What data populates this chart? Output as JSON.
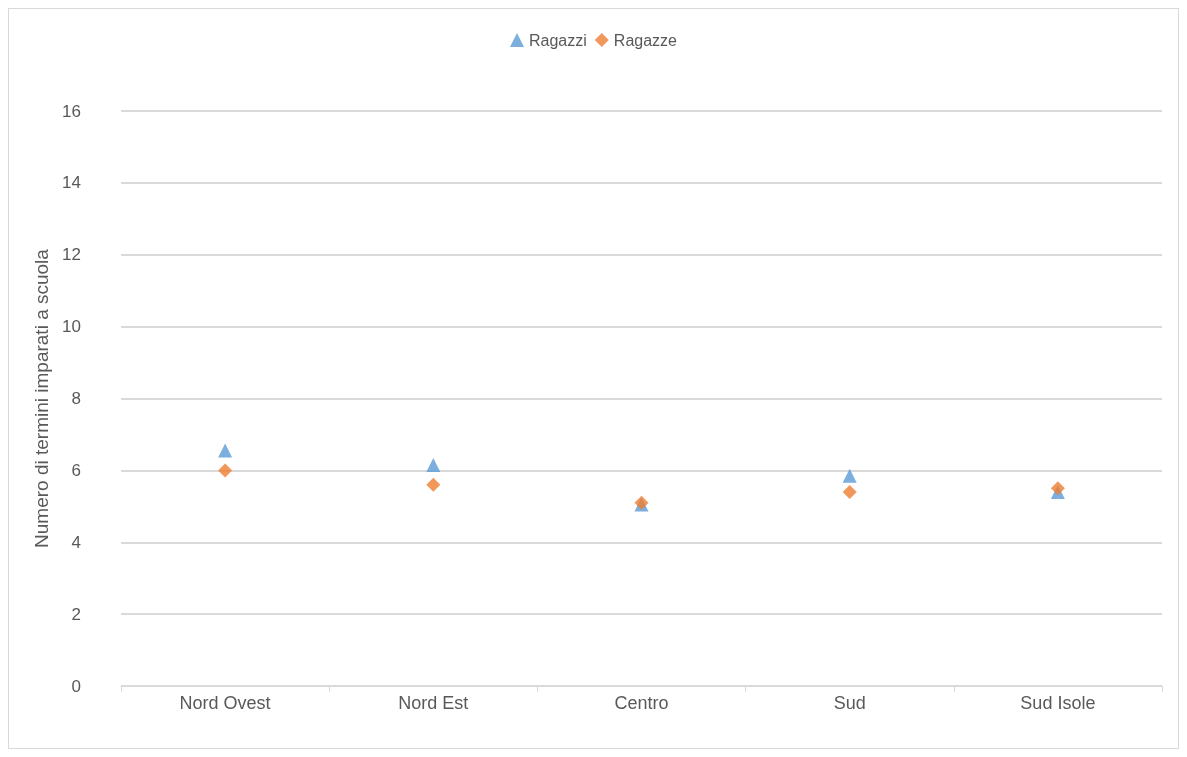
{
  "chart_data": {
    "type": "scatter",
    "ylabel": "Numero di termini imparati a scuola",
    "categories": [
      "Nord Ovest",
      "Nord Est",
      "Centro",
      "Sud",
      "Sud Isole"
    ],
    "ylim": [
      0,
      16
    ],
    "yticks": [
      0,
      2,
      4,
      6,
      8,
      10,
      12,
      14,
      16
    ],
    "grid": "y",
    "legend": "top",
    "series": [
      {
        "name": "Ragazzi",
        "color": "#5b9bd5",
        "marker": "triangle",
        "values": [
          6.55,
          6.15,
          5.05,
          5.85,
          5.4
        ]
      },
      {
        "name": "Ragazze",
        "color": "#ed7d31",
        "marker": "diamond",
        "values": [
          6.0,
          5.6,
          5.1,
          5.4,
          5.5
        ]
      }
    ]
  }
}
